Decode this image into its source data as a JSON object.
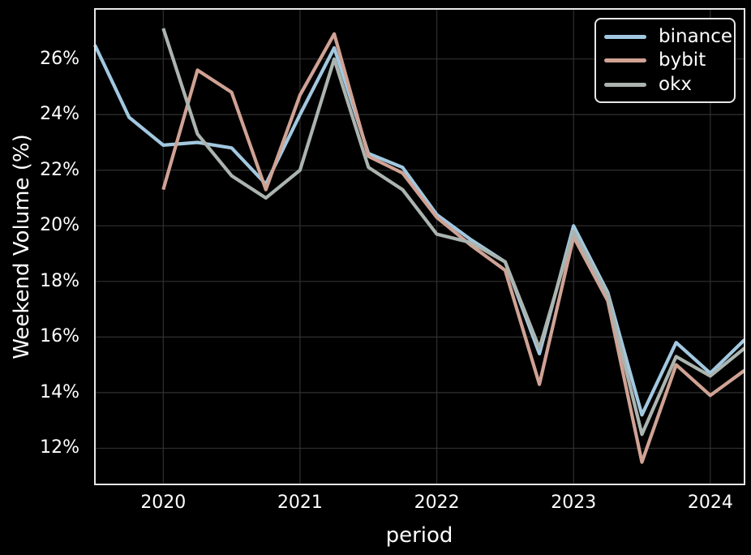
{
  "theme": {
    "background": "#000000",
    "text_color": "#ffffff",
    "grid_color": "#303030",
    "spine_color": "#e8e8e8"
  },
  "chart_data": {
    "type": "line",
    "title": "",
    "xlabel": "period",
    "ylabel": "Weekend Volume (%)",
    "grid": true,
    "legend_position": "upper right",
    "line_width": 4.2,
    "x_periods": [
      "2019Q3",
      "2019Q4",
      "2020Q1",
      "2020Q2",
      "2020Q3",
      "2020Q4",
      "2021Q1",
      "2021Q2",
      "2021Q3",
      "2021Q4",
      "2022Q1",
      "2022Q2",
      "2022Q3",
      "2022Q4",
      "2023Q1",
      "2023Q2",
      "2023Q3",
      "2023Q4",
      "2024Q1",
      "2024Q2"
    ],
    "series": [
      {
        "name": "binance",
        "color": "#a2c8e0",
        "values": [
          26.5,
          23.9,
          22.9,
          23.0,
          22.8,
          21.5,
          24.0,
          26.4,
          22.6,
          22.1,
          20.4,
          19.5,
          18.7,
          15.4,
          20.0,
          17.6,
          13.2,
          15.8,
          14.7,
          15.9
        ]
      },
      {
        "name": "bybit",
        "color": "#d0a294",
        "values": [
          null,
          null,
          21.3,
          25.6,
          24.8,
          21.3,
          24.7,
          26.9,
          22.5,
          21.9,
          20.3,
          19.3,
          18.4,
          14.3,
          19.6,
          17.3,
          11.5,
          15.0,
          13.9,
          14.8
        ]
      },
      {
        "name": "okx",
        "color": "#abb4af",
        "values": [
          null,
          null,
          27.1,
          23.3,
          21.8,
          21.0,
          22.0,
          26.0,
          22.1,
          21.3,
          19.7,
          19.4,
          18.7,
          15.6,
          19.8,
          17.5,
          12.5,
          15.3,
          14.6,
          15.6
        ]
      }
    ],
    "yticks": [
      {
        "value": 12,
        "label": "12%"
      },
      {
        "value": 14,
        "label": "14%"
      },
      {
        "value": 16,
        "label": "16%"
      },
      {
        "value": 18,
        "label": "18%"
      },
      {
        "value": 20,
        "label": "20%"
      },
      {
        "value": 22,
        "label": "22%"
      },
      {
        "value": 24,
        "label": "24%"
      },
      {
        "value": 26,
        "label": "26%"
      }
    ],
    "xticks": [
      {
        "index": 2,
        "label": "2020"
      },
      {
        "index": 6,
        "label": "2021"
      },
      {
        "index": 10,
        "label": "2022"
      },
      {
        "index": 14,
        "label": "2023"
      },
      {
        "index": 18,
        "label": "2024"
      }
    ],
    "ylim": [
      10.7,
      27.8
    ]
  }
}
